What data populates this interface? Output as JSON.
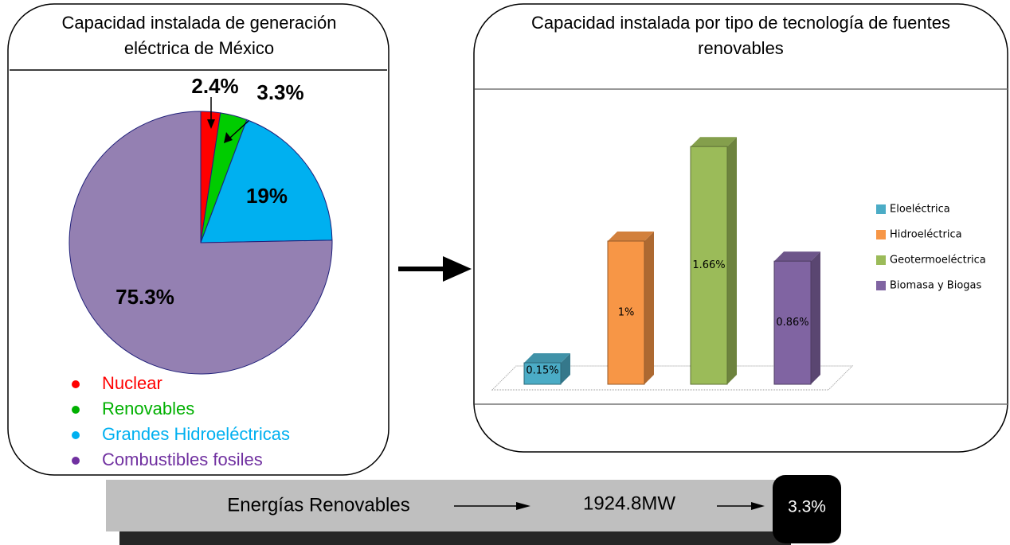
{
  "chart_data": [
    {
      "type": "pie",
      "title": [
        "Capacidad instalada de generación",
        "eléctrica de México"
      ],
      "categories": [
        "Nuclear",
        "Renovables",
        "Grandes Hidroeléctricas",
        "Combustibles fosiles"
      ],
      "values": [
        2.4,
        3.3,
        19,
        75.3
      ],
      "value_labels": [
        "2.4%",
        "3.3%",
        "19%",
        "75.3%"
      ],
      "colors": [
        "#ff0000",
        "#00cc00",
        "#00b0f0",
        "#9480b2"
      ],
      "legend_colors": [
        "#ff0000",
        "#00b000",
        "#00b0f0",
        "#7030a0"
      ]
    },
    {
      "type": "bar3d",
      "title": [
        "Capacidad instalada por tipo de tecnología de fuentes",
        "renovables"
      ],
      "categories": [
        "Eloeléctrica",
        "Hidroeléctrica",
        "Geotermoeléctrica",
        "Biomasa y Biogas"
      ],
      "values": [
        0.15,
        1,
        1.66,
        0.86
      ],
      "value_labels": [
        "0.15%",
        "1%",
        "1.66%",
        "0.86%"
      ],
      "colors": [
        "#4bacc6",
        "#f79646",
        "#9bbb59",
        "#8064a2"
      ],
      "legend": "right"
    }
  ],
  "footer": {
    "label": "Energías Renovables",
    "amount": "1924.8MW",
    "share": "3.3%"
  }
}
